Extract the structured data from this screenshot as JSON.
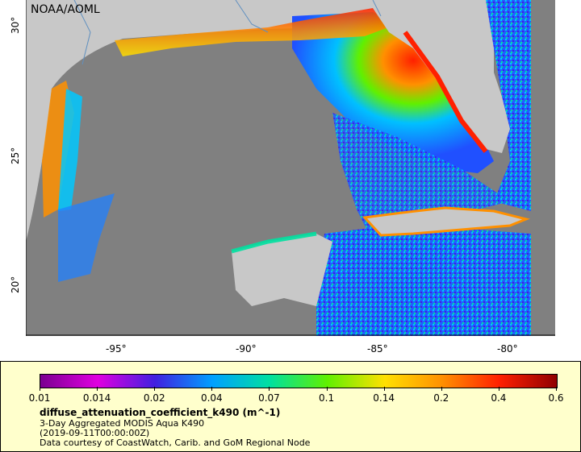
{
  "credit": "NOAA/AOML",
  "map": {
    "x_ticks": [
      "-95°",
      "-90°",
      "-85°",
      "-80°"
    ],
    "y_ticks": [
      "30°",
      "25°",
      "20°"
    ],
    "lon_range": [
      -98,
      -78
    ],
    "lat_range": [
      18,
      31
    ]
  },
  "legend": {
    "colorbar_ticks": [
      "0.01",
      "0.014",
      "0.02",
      "0.04",
      "0.07",
      "0.1",
      "0.14",
      "0.2",
      "0.4",
      "0.6"
    ],
    "colors": [
      "#7a0090",
      "#e000e0",
      "#4020e0",
      "#00a0ff",
      "#00e0a0",
      "#60f000",
      "#ffe000",
      "#ff9000",
      "#ff2000",
      "#900000"
    ],
    "variable": "diffuse_attenuation_coefficient_k490 (m^-1)",
    "product": "3-Day Aggregated MODIS Aqua K490",
    "date": "(2019-09-11T00:00:00Z)",
    "source": "Data courtesy of CoastWatch, Carib. and GoM Regional Node"
  }
}
